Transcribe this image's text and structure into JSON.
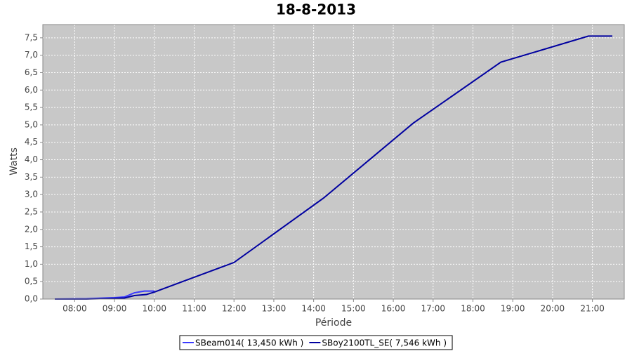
{
  "chart_data": {
    "type": "line",
    "title": "18-8-2013",
    "x_label": "Période",
    "y_label": "Watts",
    "xlim": [
      7.2,
      21.8
    ],
    "ylim": [
      0,
      7.88
    ],
    "xticks": [
      {
        "value": 8,
        "label": "08:00"
      },
      {
        "value": 9,
        "label": "09:00"
      },
      {
        "value": 10,
        "label": "10:00"
      },
      {
        "value": 11,
        "label": "11:00"
      },
      {
        "value": 12,
        "label": "12:00"
      },
      {
        "value": 13,
        "label": "13:00"
      },
      {
        "value": 14,
        "label": "14:00"
      },
      {
        "value": 15,
        "label": "15:00"
      },
      {
        "value": 16,
        "label": "16:00"
      },
      {
        "value": 17,
        "label": "17:00"
      },
      {
        "value": 18,
        "label": "18:00"
      },
      {
        "value": 19,
        "label": "19:00"
      },
      {
        "value": 20,
        "label": "20:00"
      },
      {
        "value": 21,
        "label": "21:00"
      }
    ],
    "yticks": [
      {
        "value": 0,
        "label": "0,0"
      },
      {
        "value": 0.5,
        "label": "0,5"
      },
      {
        "value": 1,
        "label": "1,0"
      },
      {
        "value": 1.5,
        "label": "1,5"
      },
      {
        "value": 2,
        "label": "2,0"
      },
      {
        "value": 2.5,
        "label": "2,5"
      },
      {
        "value": 3,
        "label": "3,0"
      },
      {
        "value": 3.5,
        "label": "3,5"
      },
      {
        "value": 4,
        "label": "4,0"
      },
      {
        "value": 4.5,
        "label": "4,5"
      },
      {
        "value": 5,
        "label": "5,0"
      },
      {
        "value": 5.5,
        "label": "5,5"
      },
      {
        "value": 6,
        "label": "6,0"
      },
      {
        "value": 6.5,
        "label": "6,5"
      },
      {
        "value": 7,
        "label": "7,0"
      },
      {
        "value": 7.5,
        "label": "7,5"
      }
    ],
    "grid": true,
    "legend": "bottom",
    "series": [
      {
        "name": "SBeam014( 13,450 kWh )",
        "color": "#3a3aff",
        "x": [
          7.5,
          8.3,
          9.0,
          9.25,
          9.5,
          9.75,
          10.0
        ],
        "values": [
          0,
          0.01,
          0.04,
          0.06,
          0.18,
          0.23,
          0.23
        ]
      },
      {
        "name": "SBoy2100TL_SE( 7,546 kWh )",
        "color": "#0000a0",
        "x": [
          7.5,
          8.3,
          9.0,
          9.25,
          9.5,
          9.8,
          10.0,
          12.0,
          14.25,
          16.5,
          18.7,
          20.9,
          21.5
        ],
        "values": [
          0,
          0,
          0.02,
          0.03,
          0.1,
          0.13,
          0.2,
          1.05,
          2.9,
          5.05,
          6.8,
          7.55,
          7.55
        ]
      }
    ]
  }
}
